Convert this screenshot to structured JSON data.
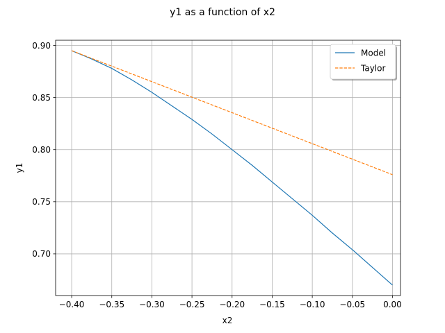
{
  "chart_data": {
    "type": "line",
    "title": "y1 as a function of x2",
    "xlabel": "x2",
    "ylabel": "y1",
    "xlim": [
      -0.42,
      0.01
    ],
    "ylim": [
      0.66,
      0.905
    ],
    "xticks": [
      -0.4,
      -0.35,
      -0.3,
      -0.25,
      -0.2,
      -0.15,
      -0.1,
      -0.05,
      0.0
    ],
    "xtick_labels": [
      "−0.40",
      "−0.35",
      "−0.30",
      "−0.25",
      "−0.20",
      "−0.15",
      "−0.10",
      "−0.05",
      "0.00"
    ],
    "yticks": [
      0.7,
      0.75,
      0.8,
      0.85,
      0.9
    ],
    "ytick_labels": [
      "0.70",
      "0.75",
      "0.80",
      "0.85",
      "0.90"
    ],
    "grid": true,
    "legend_position": "top-right",
    "series": [
      {
        "name": "Model",
        "color": "#1f77b4",
        "dash": "solid",
        "x": [
          -0.4,
          -0.375,
          -0.35,
          -0.325,
          -0.3,
          -0.275,
          -0.25,
          -0.225,
          -0.2,
          -0.175,
          -0.15,
          -0.125,
          -0.1,
          -0.075,
          -0.05,
          -0.025,
          0.0
        ],
        "y": [
          0.895,
          0.887,
          0.878,
          0.867,
          0.855,
          0.842,
          0.829,
          0.815,
          0.8,
          0.785,
          0.769,
          0.753,
          0.737,
          0.72,
          0.704,
          0.687,
          0.67
        ]
      },
      {
        "name": "Taylor",
        "color": "#ff7f0e",
        "dash": "dashed",
        "x": [
          -0.4,
          0.0
        ],
        "y": [
          0.895,
          0.776
        ]
      }
    ]
  }
}
